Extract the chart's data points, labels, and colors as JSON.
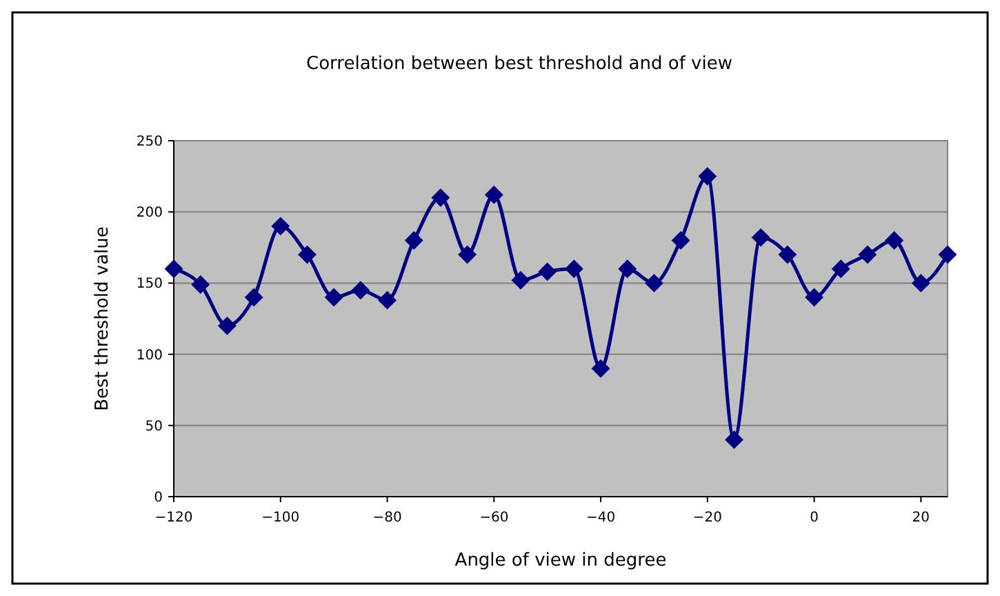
{
  "chart_data": {
    "type": "line",
    "title": "Correlation between best threshold and of view",
    "xlabel": "Angle of view in degree",
    "ylabel": "Best threshold value",
    "x": [
      -120,
      -115,
      -110,
      -105,
      -100,
      -95,
      -90,
      -85,
      -80,
      -75,
      -70,
      -65,
      -60,
      -55,
      -50,
      -45,
      -40,
      -35,
      -30,
      -25,
      -20,
      -15,
      -10,
      -5,
      0,
      5,
      10,
      15,
      20,
      25
    ],
    "series": [
      {
        "color": "#000080",
        "values": [
          160,
          149,
          120,
          140,
          190,
          170,
          140,
          145,
          138,
          180,
          210,
          170,
          212,
          152,
          158,
          160,
          90,
          160,
          150,
          180,
          225,
          40,
          182,
          170,
          140,
          160,
          170,
          180,
          150,
          170
        ]
      }
    ],
    "xlim": [
      -120,
      25
    ],
    "xticks": [
      {
        "value": -120,
        "label": "−120"
      },
      {
        "value": -100,
        "label": "−100"
      },
      {
        "value": -80,
        "label": "−80"
      },
      {
        "value": -60,
        "label": "−60"
      },
      {
        "value": -40,
        "label": "−40"
      },
      {
        "value": -20,
        "label": "−20"
      },
      0,
      20
    ],
    "ylim": [
      0,
      250
    ],
    "yticks": [
      0,
      50,
      100,
      150,
      200,
      250
    ],
    "grid": "y",
    "marker": "diamond",
    "line_style": "solid"
  }
}
